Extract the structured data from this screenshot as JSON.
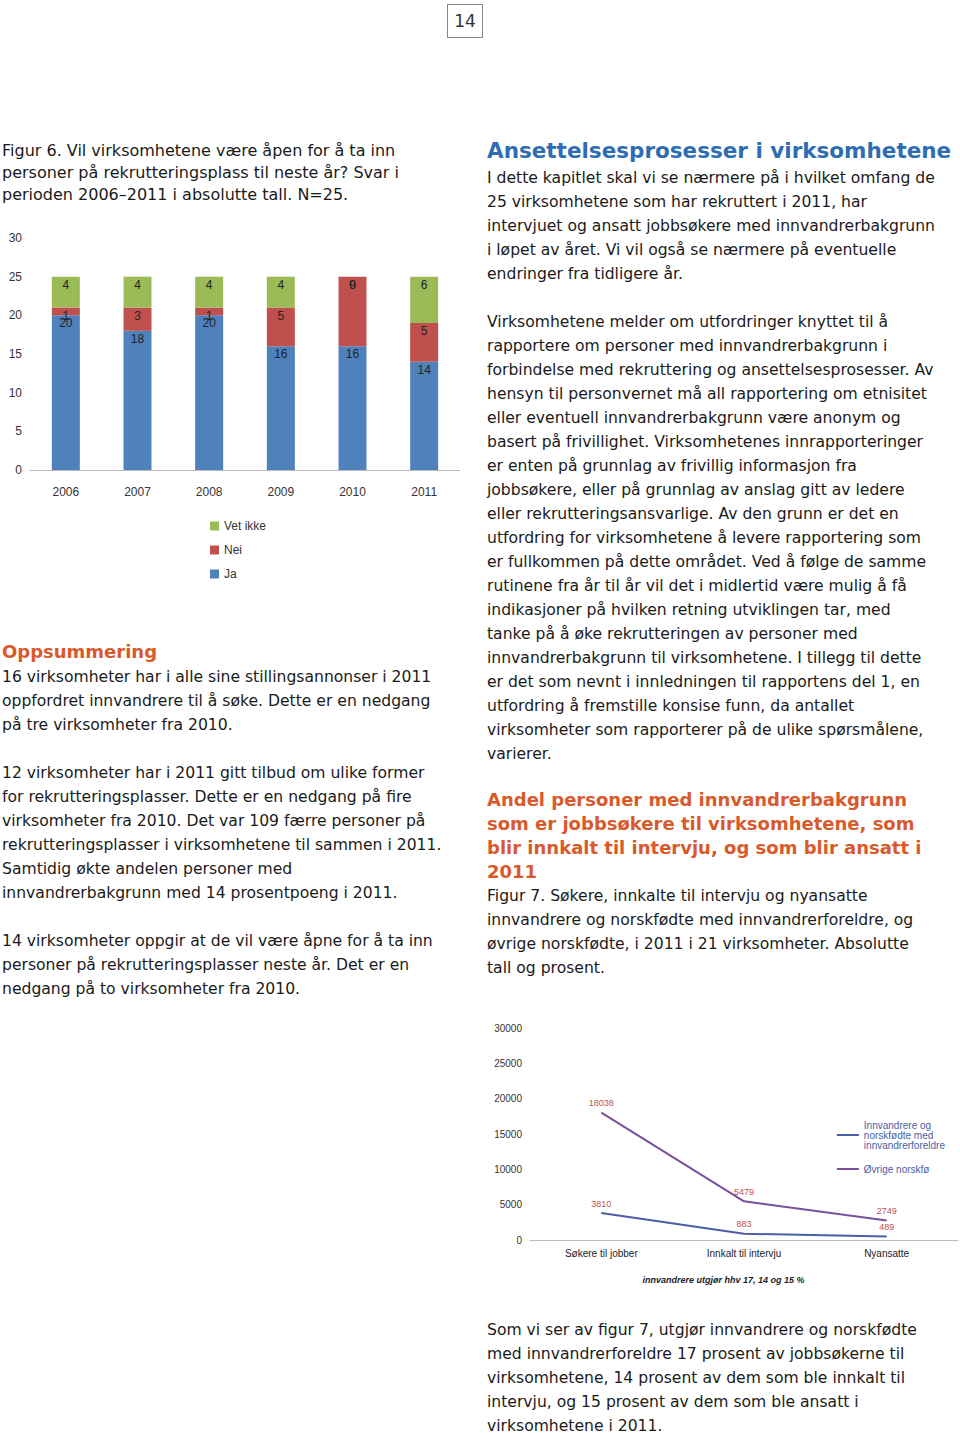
{
  "page_number": "14",
  "left": {
    "figure_caption": "Figur 6. Vil virksomhetene være åpen for å ta inn personer på rekrutteringsplass til neste år? Svar i perioden 2006–2011 i absolutte tall. N=25.",
    "summary_heading": "Oppsummering",
    "summary_paragraphs": [
      "16 virksomheter har i alle sine stillingsannonser i 2011 oppfordret innvandrere til å søke. Dette er en nedgang på tre virksomheter fra 2010.",
      "12 virksomheter har i 2011 gitt tilbud om ulike former for rekrutteringsplasser. Dette er en nedgang på fire virksomheter fra 2010. Det var 109 færre personer på rekrutteringsplasser i virksomhetene til sammen i 2011. Samtidig økte andelen personer med innvandrerbakgrunn med 14 prosentpoeng i 2011.",
      "14 virksomheter oppgir at de vil være åpne for å ta inn personer på rekrutteringsplasser neste år. Det er en nedgang på to virksomheter fra 2010."
    ]
  },
  "right": {
    "heading": "Ansettelsesprosesser i virksomhetene",
    "paragraphs": [
      "I dette kapitlet skal vi se nærmere på i hvilket omfang de 25 virksomhetene som har rekruttert i 2011, har intervjuet og ansatt jobbsøkere med innvandrerbakgrunn i løpet av året. Vi vil også se nærmere på eventuelle endringer fra tidligere år.",
      "Virksomhetene melder om utfordringer knyttet til å rapportere om personer med innvandrerbakgrunn i forbindelse med rekruttering og ansettelsesprosesser. Av hensyn til personvernet må all rapportering om etnisitet eller eventuell innvandrerbakgrunn være anonym og basert på frivillighet. Virksomhetenes innrapporteringer er enten på grunnlag av frivillig informasjon fra jobbsøkere, eller på grunnlag av anslag gitt av ledere eller rekrutteringsansvarlige. Av den grunn er det en utfordring for virksomhetene å levere rapportering som er fullkommen på dette området. Ved å følge de samme rutinene fra år til år vil det i midlertid være mulig å få indikasjoner på hvilken retning utviklingen tar, med tanke på å øke rekrutteringen av personer med innvandrerbakgrunn til virksomhetene. I tillegg til dette er det som nevnt i innledningen til rapportens del 1, en utfordring å fremstille konsise funn, da antallet virksomheter som rapporterer på de ulike spørsmålene, varierer."
    ],
    "subheading": "Andel personer med innvandrerbakgrunn som er jobbsøkere til virksomhetene, som blir innkalt til intervju, og som blir ansatt i 2011",
    "figure_caption": "Figur 7. Søkere, innkalte til intervju og nyansatte innvandrere og norskfødte med innvandrerforeldre, og øvrige norskfødte, i 2011 i 21 virksomheter. Absolutte tall og prosent.",
    "closing_paragraph": "Som vi ser av figur 7, utgjør innvandrere og norskfødte med innvandrerforeldre 17 prosent av jobbsøkerne til virksomhetene, 14 prosent av dem som ble innkalt til intervju, og 15 prosent av dem som ble ansatt i virksomhetene i 2011."
  },
  "chart_data": [
    {
      "type": "bar",
      "stacked": true,
      "data_labels": true,
      "grid": false,
      "legend": "bottom",
      "categories": [
        "2006",
        "2007",
        "2008",
        "2009",
        "2010",
        "2011"
      ],
      "series": [
        {
          "name": "Ja",
          "color": "#4f81bd",
          "values": [
            20,
            18,
            20,
            16,
            16,
            14
          ]
        },
        {
          "name": "Nei",
          "color": "#c0504d",
          "values": [
            1,
            3,
            1,
            5,
            9,
            5
          ]
        },
        {
          "name": "Vet ikke",
          "color": "#9bbb59",
          "values": [
            4,
            4,
            4,
            4,
            0,
            6
          ]
        }
      ],
      "ylim": [
        0,
        30
      ],
      "yticks": [
        0,
        5,
        10,
        15,
        20,
        25,
        30
      ]
    },
    {
      "type": "line",
      "data_labels": true,
      "grid": false,
      "legend": "right",
      "categories": [
        "Søkere til jobber",
        "Innkalt til intervju",
        "Nyansatte"
      ],
      "series": [
        {
          "name": "Innvandrere og norskfødte med innvandrerforeldre",
          "color": "#4a5ea6",
          "values": [
            3810,
            883,
            489
          ]
        },
        {
          "name": "Øvrige norskfø",
          "color": "#7a4fa0",
          "values": [
            18038,
            5479,
            2749
          ]
        }
      ],
      "ylim": [
        0,
        30000
      ],
      "yticks": [
        0,
        5000,
        10000,
        15000,
        20000,
        25000,
        30000
      ],
      "annotations": [
        "innvandrere utgjør hhv 17, 14 og 15 %"
      ]
    }
  ]
}
